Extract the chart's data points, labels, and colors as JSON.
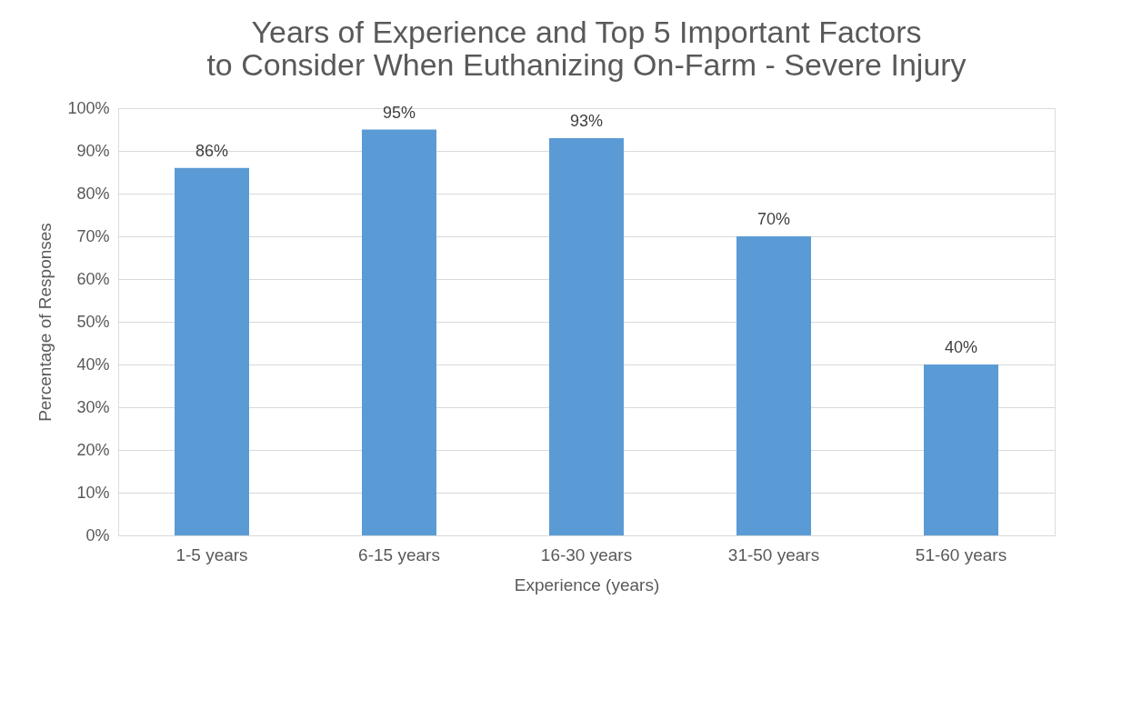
{
  "chart_data": {
    "type": "bar",
    "title": "Years of Experience and Top 5 Important Factors to Consider When Euthanizing On-Farm - Severe Injury",
    "xlabel": "Experience (years)",
    "ylabel": "Percentage of Responses",
    "categories": [
      "1-5 years",
      "6-15 years",
      "16-30 years",
      "31-50 years",
      "51-60 years"
    ],
    "values": [
      86,
      95,
      93,
      70,
      40
    ],
    "value_labels": [
      "86%",
      "95%",
      "93%",
      "70%",
      "40%"
    ],
    "color": "#5b9bd5",
    "ylim": [
      0,
      100
    ],
    "yticks": [
      {
        "value": 0,
        "label": "0%"
      },
      {
        "value": 10,
        "label": "10%"
      },
      {
        "value": 20,
        "label": "20%"
      },
      {
        "value": 30,
        "label": "30%"
      },
      {
        "value": 40,
        "label": "40%"
      },
      {
        "value": 50,
        "label": "50%"
      },
      {
        "value": 60,
        "label": "60%"
      },
      {
        "value": 70,
        "label": "70%"
      },
      {
        "value": 80,
        "label": "80%"
      },
      {
        "value": 90,
        "label": "90%"
      },
      {
        "value": 100,
        "label": "100%"
      }
    ],
    "grid": "y"
  }
}
